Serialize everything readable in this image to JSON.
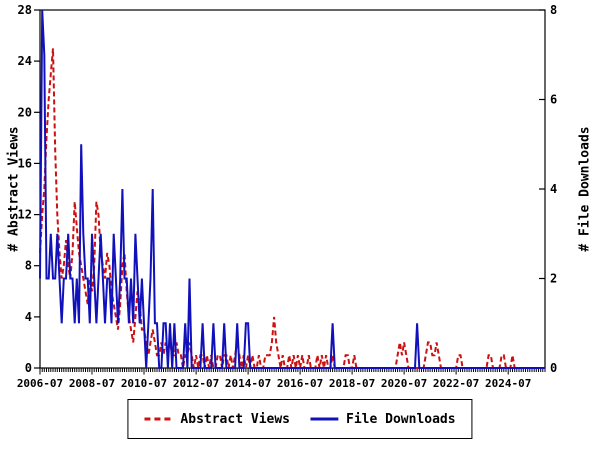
{
  "chart_data": {
    "type": "line",
    "title": "",
    "x_start": "2006-07",
    "x_interval": "month",
    "x_tick_month_step": 24,
    "x_tick_labels": [
      "2006-07",
      "2008-07",
      "2010-07",
      "2012-07",
      "2014-07",
      "2016-07",
      "2018-07",
      "2020-07",
      "2022-07",
      "2024-07"
    ],
    "left_axis": {
      "label": "# Abstract Views",
      "min": 0,
      "max": 28,
      "ticks": [
        0,
        4,
        8,
        12,
        16,
        20,
        24,
        28
      ]
    },
    "right_axis": {
      "label": "# File Downloads",
      "min": 0,
      "max": 8,
      "ticks": [
        0,
        2,
        4,
        6,
        8
      ]
    },
    "grid": false,
    "legend": {
      "position": "bottom"
    },
    "series": [
      {
        "name": "Abstract Views",
        "axis": "left",
        "color": "#cc1111",
        "style": "dashed",
        "values": [
          9,
          12,
          14,
          18,
          21,
          23,
          25,
          17,
          12,
          9,
          7,
          8,
          10,
          8,
          7,
          9,
          13,
          11,
          9,
          8,
          7,
          6,
          5,
          7,
          6,
          8,
          13,
          12,
          9,
          8,
          7,
          9,
          8,
          6,
          5,
          4,
          3,
          5,
          8,
          9,
          6,
          4,
          3,
          2,
          4,
          6,
          5,
          3,
          3,
          2,
          1,
          2,
          3,
          2,
          1,
          1,
          2,
          1,
          2,
          1,
          2,
          1,
          1,
          2,
          1,
          1,
          0,
          1,
          1,
          2,
          1,
          0,
          1,
          0,
          1,
          1,
          0,
          1,
          0,
          1,
          0,
          0,
          1,
          1,
          0,
          1,
          1,
          0,
          1,
          0,
          1,
          2,
          1,
          0,
          1,
          0,
          1,
          0,
          1,
          0,
          0,
          1,
          0,
          0,
          1,
          1,
          1,
          2,
          4,
          2,
          1,
          0,
          1,
          0,
          0,
          1,
          0,
          1,
          0,
          1,
          0,
          1,
          0,
          0,
          1,
          0,
          0,
          0,
          1,
          0,
          1,
          0,
          1,
          0,
          0,
          1,
          0,
          0,
          0,
          0,
          0,
          1,
          1,
          0,
          0,
          1,
          0,
          0,
          0,
          0,
          0,
          0,
          0,
          0,
          0,
          0,
          0,
          0,
          0,
          0,
          0,
          0,
          0,
          0,
          0,
          1,
          2,
          1,
          2,
          1,
          0,
          0,
          0,
          0,
          0,
          0,
          0,
          0,
          1,
          2,
          2,
          1,
          1,
          2,
          1,
          0,
          0,
          0,
          0,
          0,
          0,
          0,
          0,
          1,
          1,
          0,
          0,
          0,
          0,
          0,
          0,
          0,
          0,
          0,
          0,
          0,
          0,
          1,
          1,
          0,
          0,
          0,
          0,
          1,
          1,
          0,
          0,
          0,
          1,
          0,
          0,
          0,
          0,
          0,
          0,
          0,
          0,
          0,
          0,
          0,
          0,
          0,
          0,
          0
        ]
      },
      {
        "name": "File Downloads",
        "axis": "right",
        "color": "#1111bb",
        "style": "solid",
        "values": [
          2,
          8,
          7,
          2,
          2,
          3,
          2,
          2,
          3,
          2,
          1,
          2,
          2,
          3,
          2,
          2,
          1,
          2,
          1,
          5,
          3,
          2,
          2,
          1,
          3,
          2,
          1,
          2,
          3,
          2,
          1,
          2,
          2,
          1,
          3,
          2,
          1,
          2,
          4,
          2,
          2,
          1,
          2,
          1,
          3,
          2,
          1,
          2,
          1,
          0,
          1,
          2,
          4,
          1,
          1,
          0,
          0,
          1,
          1,
          0,
          1,
          0,
          1,
          0,
          0,
          0,
          0,
          1,
          0,
          2,
          0,
          0,
          0,
          0,
          0,
          1,
          0,
          0,
          0,
          0,
          1,
          0,
          0,
          0,
          0,
          1,
          0,
          0,
          0,
          0,
          0,
          1,
          0,
          0,
          0,
          1,
          1,
          0,
          0,
          0,
          0,
          0,
          0,
          0,
          0,
          0,
          0,
          0,
          0,
          0,
          0,
          0,
          0,
          0,
          0,
          0,
          0,
          0,
          0,
          0,
          0,
          0,
          0,
          0,
          0,
          0,
          0,
          0,
          0,
          0,
          0,
          0,
          0,
          0,
          0,
          1,
          0,
          0,
          0,
          0,
          0,
          0,
          0,
          0,
          0,
          0,
          0,
          0,
          0,
          0,
          0,
          0,
          0,
          0,
          0,
          0,
          0,
          0,
          0,
          0,
          0,
          0,
          0,
          0,
          0,
          0,
          0,
          0,
          0,
          0,
          0,
          0,
          0,
          0,
          1,
          0,
          0,
          0,
          0,
          0,
          0,
          0,
          0,
          0,
          0,
          0,
          0,
          0,
          0,
          0,
          0,
          0,
          0,
          0,
          0,
          0,
          0,
          0,
          0,
          0,
          0,
          0,
          0,
          0,
          0,
          0,
          0,
          0,
          0,
          0,
          0,
          0,
          0,
          0,
          0,
          0,
          0,
          0,
          0,
          0,
          0,
          0,
          0,
          0,
          0,
          0,
          0,
          0,
          0,
          0,
          0,
          0,
          0,
          0
        ]
      }
    ]
  },
  "colors": {
    "abstract_views": "#cc1111",
    "file_downloads": "#1111bb",
    "axis": "#000000",
    "background": "#ffffff"
  }
}
